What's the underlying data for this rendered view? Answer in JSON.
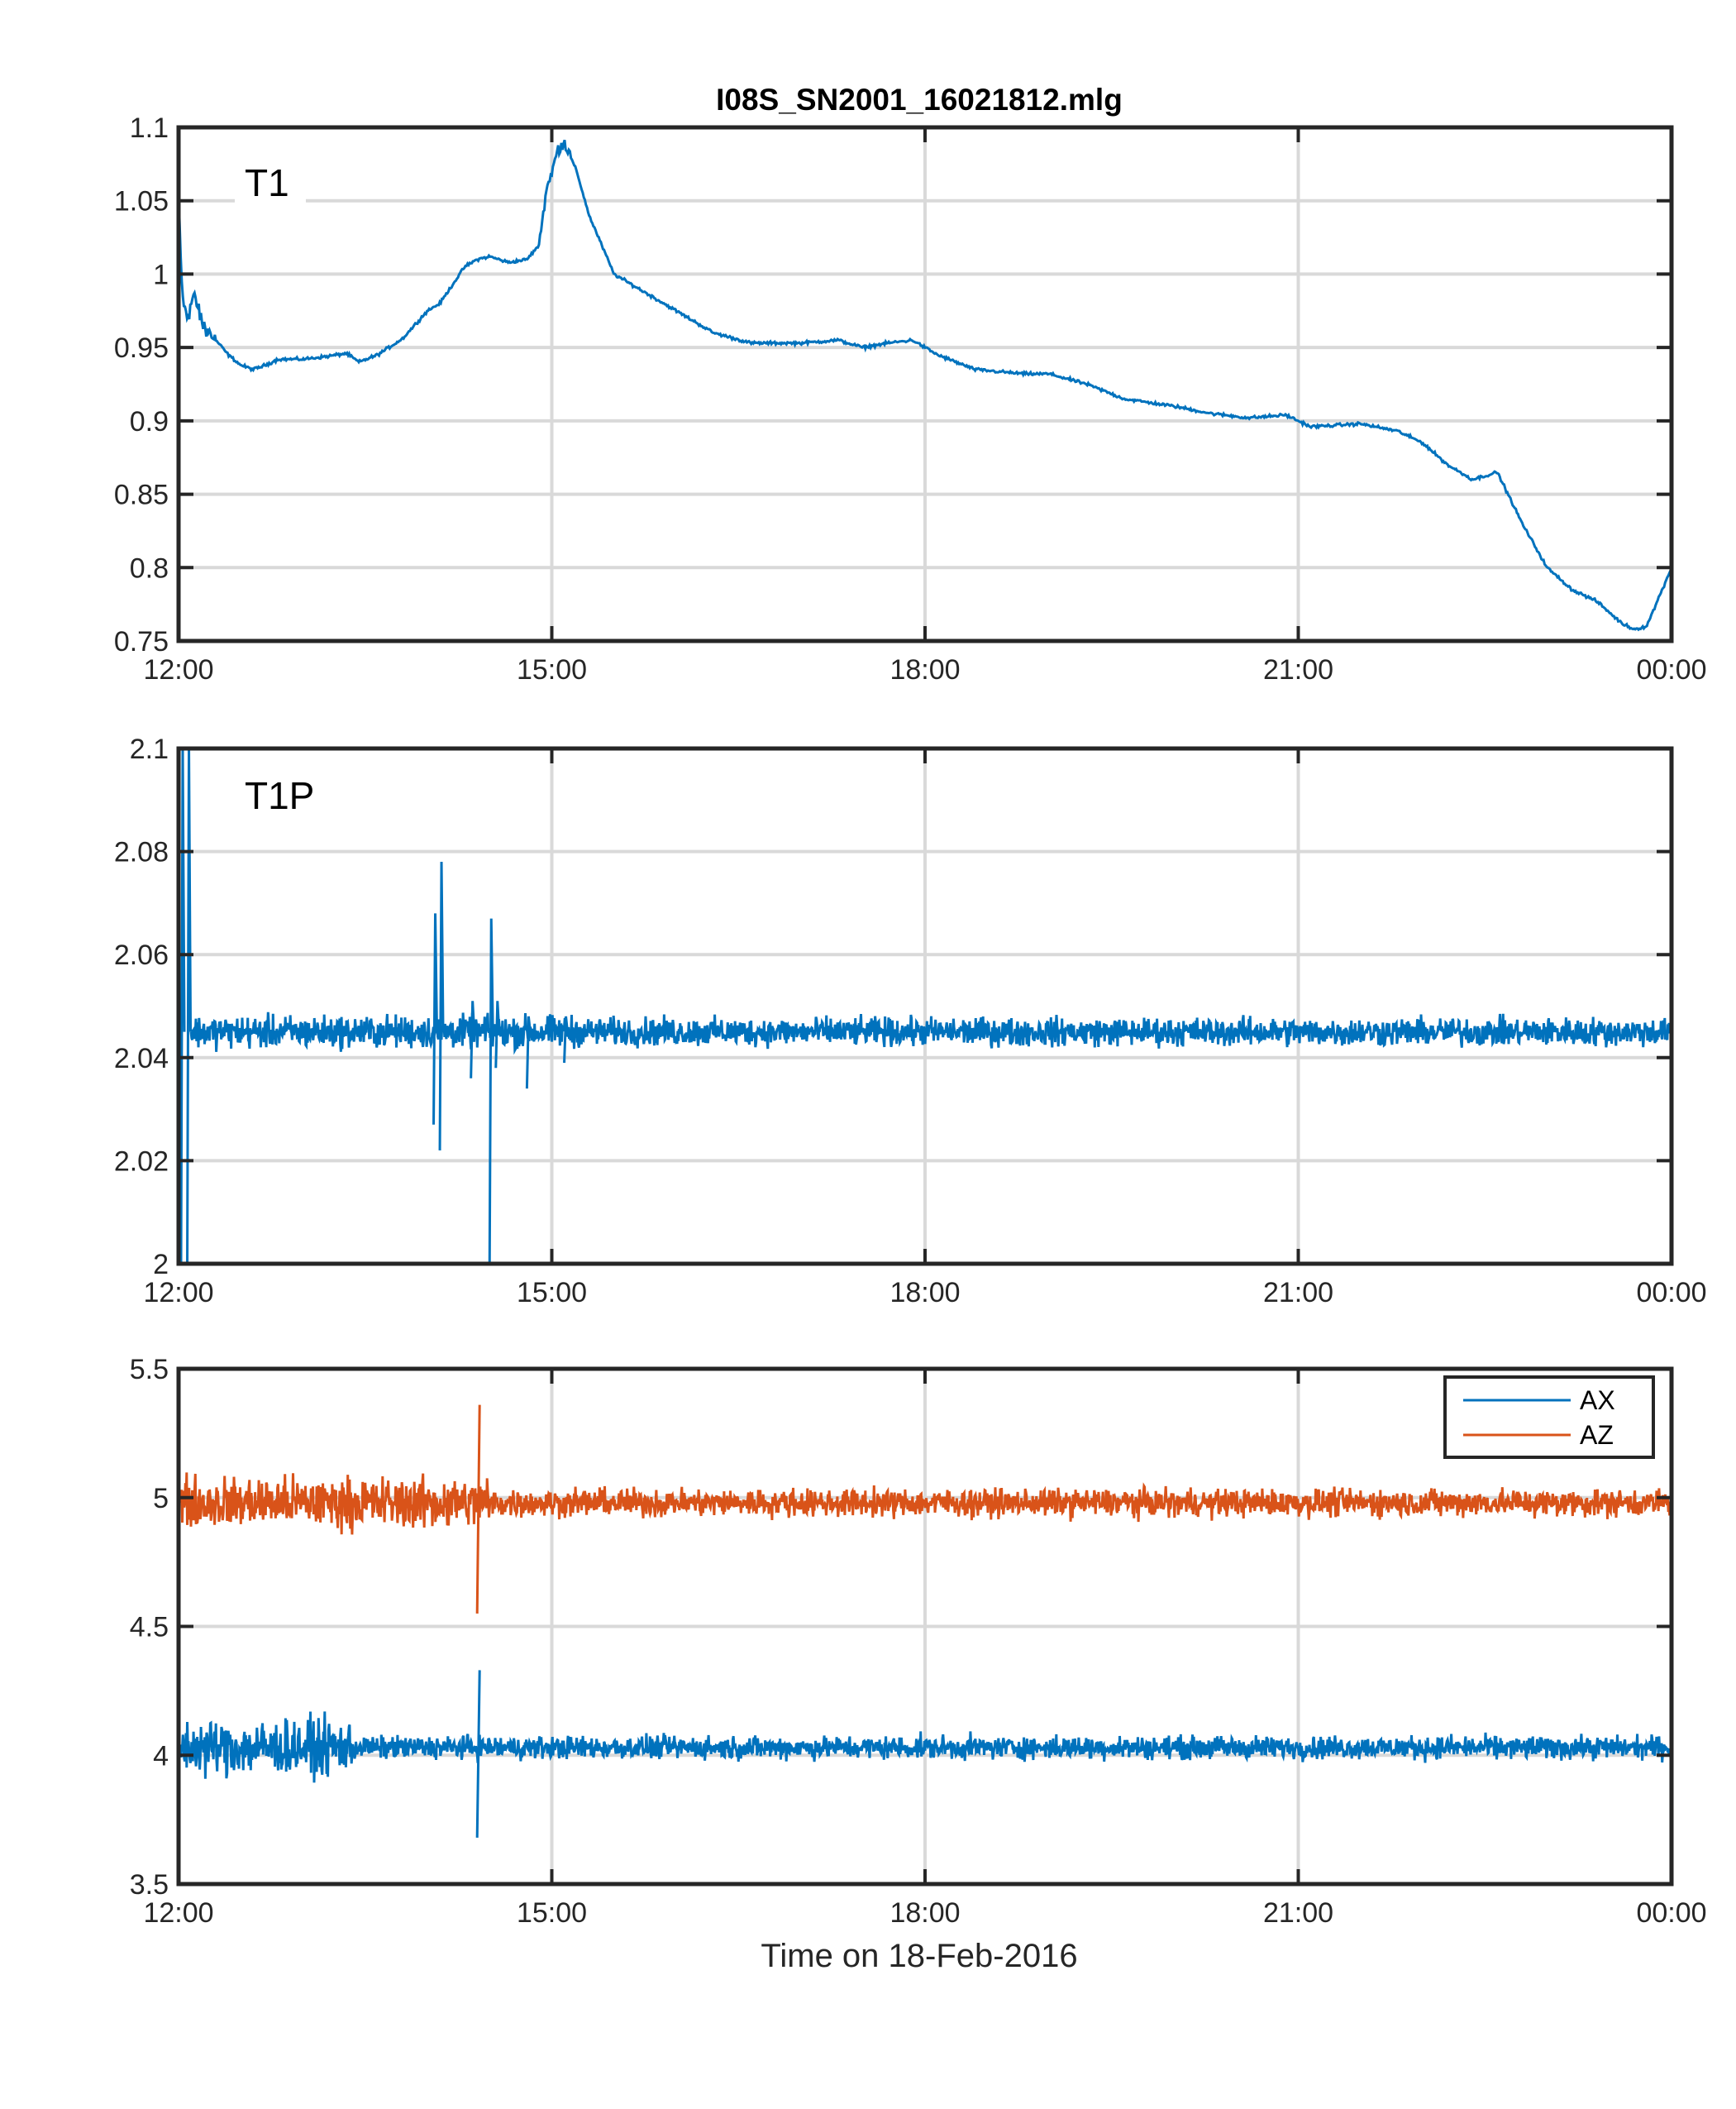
{
  "title": "I08S_SN2001_16021812.mlg",
  "xlabel": "Time on 18-Feb-2016",
  "colors": {
    "blue": "#0072BD",
    "orange": "#D95319",
    "grid": "#d9d9d9",
    "axis": "#262626"
  },
  "chart_data": [
    {
      "type": "line",
      "panel_label": "T1",
      "title": "I08S_SN2001_16021812.mlg",
      "xlim_hours": [
        12,
        24
      ],
      "xticks": [
        12,
        15,
        18,
        21,
        24
      ],
      "xtick_labels": [
        "12:00",
        "15:00",
        "18:00",
        "21:00",
        "00:00"
      ],
      "ylim": [
        0.75,
        1.1
      ],
      "yticks": [
        0.75,
        0.8,
        0.85,
        0.9,
        0.95,
        1,
        1.05,
        1.1
      ],
      "ytick_labels": [
        "0.75",
        "0.8",
        "0.85",
        "0.9",
        "0.95",
        "1",
        "1.05",
        "1.1"
      ],
      "grid": true,
      "series": [
        {
          "color": "#0072BD",
          "x": [
            12.0,
            12.03,
            12.07,
            12.12,
            12.2,
            12.3,
            12.4,
            12.5,
            12.6,
            12.7,
            12.8,
            13.0,
            13.2,
            13.35,
            13.45,
            13.6,
            13.8,
            14.0,
            14.1,
            14.3,
            14.4,
            14.5,
            14.65,
            14.8,
            14.9,
            14.95,
            15.05,
            15.1,
            15.2,
            15.3,
            15.5,
            15.8,
            16.0,
            16.3,
            16.6,
            17.0,
            17.3,
            17.5,
            17.7,
            17.9,
            18.1,
            18.4,
            18.8,
            19.0,
            19.3,
            19.6,
            20.0,
            20.3,
            20.6,
            20.9,
            21.0,
            21.1,
            21.5,
            21.8,
            22.0,
            22.2,
            22.4,
            22.6,
            22.8,
            23.0,
            23.2,
            23.4,
            23.6,
            23.7,
            23.8,
            24.0
          ],
          "y": [
            1.05,
            0.985,
            0.97,
            0.985,
            0.965,
            0.955,
            0.945,
            0.938,
            0.935,
            0.938,
            0.942,
            0.942,
            0.944,
            0.946,
            0.94,
            0.945,
            0.956,
            0.975,
            0.98,
            1.005,
            1.01,
            1.012,
            1.008,
            1.01,
            1.02,
            1.055,
            1.085,
            1.09,
            1.07,
            1.04,
            1.0,
            0.985,
            0.975,
            0.96,
            0.953,
            0.953,
            0.955,
            0.95,
            0.953,
            0.955,
            0.945,
            0.935,
            0.932,
            0.932,
            0.925,
            0.915,
            0.91,
            0.905,
            0.902,
            0.904,
            0.9,
            0.896,
            0.898,
            0.893,
            0.885,
            0.87,
            0.86,
            0.865,
            0.83,
            0.8,
            0.785,
            0.777,
            0.762,
            0.758,
            0.76,
            0.8
          ]
        }
      ]
    },
    {
      "type": "line",
      "panel_label": "T1P",
      "xlim_hours": [
        12,
        24
      ],
      "xticks": [
        12,
        15,
        18,
        21,
        24
      ],
      "xtick_labels": [
        "12:00",
        "15:00",
        "18:00",
        "21:00",
        "00:00"
      ],
      "ylim": [
        2.0,
        2.1
      ],
      "yticks": [
        2.0,
        2.02,
        2.04,
        2.06,
        2.08,
        2.1
      ],
      "ytick_labels": [
        "2",
        "2.02",
        "2.04",
        "2.06",
        "2.08",
        "2.1"
      ],
      "grid": true,
      "series": [
        {
          "color": "#0072BD",
          "baseline": 2.045,
          "noise_amplitude": 0.0025,
          "spikes": [
            {
              "x": 12.02,
              "low": 2.0,
              "high": 2.1
            },
            {
              "x": 12.07,
              "low": 2.0,
              "high": 2.1
            },
            {
              "x": 14.05,
              "low": 2.027,
              "high": 2.068
            },
            {
              "x": 14.1,
              "low": 2.022,
              "high": 2.078
            },
            {
              "x": 14.35,
              "low": 2.036,
              "high": 2.051
            },
            {
              "x": 14.5,
              "low": 2.0,
              "high": 2.067
            },
            {
              "x": 14.55,
              "low": 2.038,
              "high": 2.051
            },
            {
              "x": 14.8,
              "low": 2.034,
              "high": 2.048
            },
            {
              "x": 15.1,
              "low": 2.039,
              "high": 2.048
            }
          ]
        }
      ]
    },
    {
      "type": "line",
      "xlim_hours": [
        12,
        24
      ],
      "xticks": [
        12,
        15,
        18,
        21,
        24
      ],
      "xtick_labels": [
        "12:00",
        "15:00",
        "18:00",
        "21:00",
        "00:00"
      ],
      "xlabel": "Time on 18-Feb-2016",
      "ylim": [
        3.5,
        5.5
      ],
      "yticks": [
        3.5,
        4,
        4.5,
        5,
        5.5
      ],
      "ytick_labels": [
        "3.5",
        "4",
        "4.5",
        "5",
        "5.5"
      ],
      "grid": true,
      "legend": {
        "position": "top-right",
        "entries": [
          "AX",
          "AZ"
        ]
      },
      "series": [
        {
          "name": "AX",
          "color": "#0072BD",
          "baseline": 4.03,
          "noise_amplitude_early": 0.12,
          "noise_amplitude_late": 0.05,
          "transition_hour": 13.4,
          "spike": {
            "x": 14.4,
            "low": 3.68,
            "high": 4.33
          }
        },
        {
          "name": "AZ",
          "color": "#D95319",
          "baseline": 4.98,
          "noise_amplitude_early": 0.11,
          "noise_amplitude_late": 0.06,
          "transition_hour": 14.5,
          "spike": {
            "x": 14.4,
            "low": 4.55,
            "high": 5.36
          }
        }
      ]
    }
  ]
}
